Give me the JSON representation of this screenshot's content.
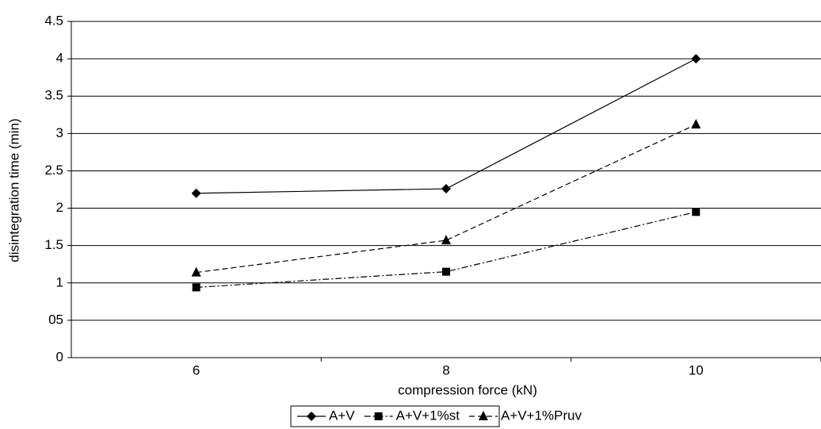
{
  "chart_data": {
    "type": "line",
    "x_label": "compression force (kN)",
    "y_label": "disintegration time (min)",
    "categories": [
      "6",
      "8",
      "10"
    ],
    "series": [
      {
        "name": "A+V",
        "color": "#000000",
        "line_style": "solid",
        "marker": "diamond",
        "values": [
          2.2,
          2.26,
          4.0
        ]
      },
      {
        "name": "A+V+1%st",
        "color": "#000000",
        "line_style": "dashdot",
        "marker": "square",
        "values": [
          0.94,
          1.15,
          1.95
        ]
      },
      {
        "name": "A+V+1%Pruv",
        "color": "#000000",
        "line_style": "dashed",
        "marker": "triangle",
        "values": [
          1.14,
          1.57,
          3.12
        ]
      }
    ],
    "ylim": [
      0,
      4.5
    ],
    "yticks": [
      0,
      {
        "value": 0.5,
        "label": "05"
      },
      1,
      1.5,
      2,
      2.5,
      3,
      3.5,
      4,
      4.5
    ],
    "grid": true,
    "legend": "bottom"
  }
}
